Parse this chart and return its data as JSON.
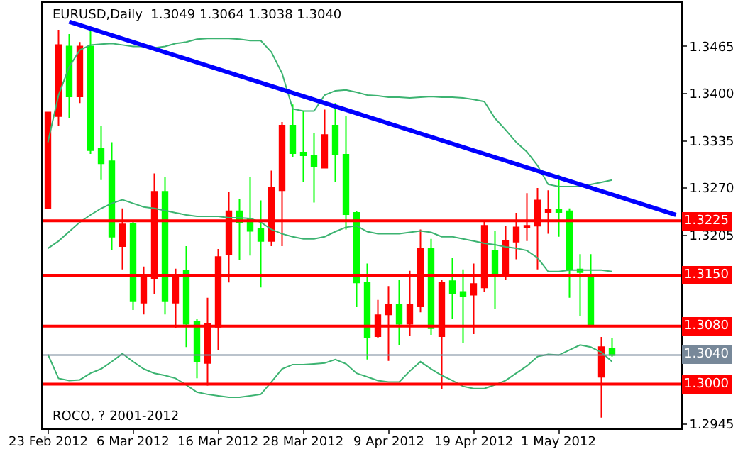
{
  "chart_data": {
    "type": "candlestick",
    "title": "EURUSD,Daily  1.3049 1.3064 1.3038 1.3040",
    "categories": [
      "23 Feb 2012",
      null,
      null,
      null,
      null,
      null,
      null,
      null,
      "6 Mar 2012",
      null,
      null,
      null,
      null,
      null,
      null,
      null,
      "16 Mar 2012",
      null,
      null,
      null,
      null,
      null,
      null,
      null,
      "28 Mar 2012",
      null,
      null,
      null,
      null,
      null,
      null,
      null,
      "9 Apr 2012",
      null,
      null,
      null,
      null,
      null,
      null,
      null,
      "19 Apr 2012",
      null,
      null,
      null,
      null,
      null,
      null,
      null,
      "1 May 2012",
      null,
      null,
      null,
      null,
      null,
      null,
      null,
      null,
      null,
      null,
      null
    ],
    "ohlc": [
      [
        1.3242,
        1.3374,
        1.3242,
        1.3374
      ],
      [
        1.3369,
        1.3488,
        1.3356,
        1.3467
      ],
      [
        1.3465,
        1.3482,
        1.3366,
        1.3396
      ],
      [
        1.3396,
        1.3471,
        1.3387,
        1.3465
      ],
      [
        1.3465,
        1.3486,
        1.3317,
        1.3322
      ],
      [
        1.3324,
        1.3356,
        1.3281,
        1.3304
      ],
      [
        1.3307,
        1.3333,
        1.3185,
        1.3203
      ],
      [
        1.319,
        1.3242,
        1.3158,
        1.322
      ],
      [
        1.3221,
        1.3224,
        1.3102,
        1.3114
      ],
      [
        1.3112,
        1.3162,
        1.3096,
        1.3148
      ],
      [
        1.3145,
        1.329,
        1.3124,
        1.3265
      ],
      [
        1.3265,
        1.3285,
        1.3096,
        1.3114
      ],
      [
        1.3112,
        1.3159,
        1.3077,
        1.3151
      ],
      [
        1.3156,
        1.319,
        1.3051,
        1.3083
      ],
      [
        1.3086,
        1.309,
        1.3008,
        1.3031
      ],
      [
        1.3029,
        1.3119,
        1.2998,
        1.3083
      ],
      [
        1.3079,
        1.3186,
        1.3047,
        1.3175
      ],
      [
        1.3179,
        1.3265,
        1.314,
        1.3238
      ],
      [
        1.3238,
        1.3255,
        1.3171,
        1.3223
      ],
      [
        1.3228,
        1.3285,
        1.3177,
        1.3211
      ],
      [
        1.3214,
        1.3253,
        1.3133,
        1.3197
      ],
      [
        1.3197,
        1.3294,
        1.319,
        1.327
      ],
      [
        1.3267,
        1.3361,
        1.319,
        1.3356
      ],
      [
        1.3356,
        1.3385,
        1.3312,
        1.3318
      ],
      [
        1.3319,
        1.3376,
        1.3278,
        1.3315
      ],
      [
        1.3315,
        1.3346,
        1.325,
        1.33
      ],
      [
        1.3298,
        1.3378,
        1.3298,
        1.3343
      ],
      [
        1.3356,
        1.3387,
        1.3278,
        1.3317
      ],
      [
        1.3316,
        1.3369,
        1.3213,
        1.3234
      ],
      [
        1.3236,
        1.3238,
        1.3106,
        1.314
      ],
      [
        1.314,
        1.3166,
        1.3034,
        1.3064
      ],
      [
        1.3066,
        1.3116,
        1.3064,
        1.3095
      ],
      [
        1.3096,
        1.3135,
        1.3032,
        1.3109
      ],
      [
        1.3109,
        1.3143,
        1.3054,
        1.3083
      ],
      [
        1.3083,
        1.3156,
        1.3066,
        1.3109
      ],
      [
        1.3107,
        1.3213,
        1.3099,
        1.3187
      ],
      [
        1.3187,
        1.32,
        1.3068,
        1.3077
      ],
      [
        1.3066,
        1.3143,
        1.2993,
        1.314
      ],
      [
        1.3142,
        1.3174,
        1.309,
        1.3125
      ],
      [
        1.3127,
        1.3158,
        1.3057,
        1.3121
      ],
      [
        1.3123,
        1.3166,
        1.3069,
        1.3138
      ],
      [
        1.3133,
        1.3226,
        1.3127,
        1.3218
      ],
      [
        1.3184,
        1.3211,
        1.3104,
        1.3153
      ],
      [
        1.3153,
        1.3218,
        1.3143,
        1.3197
      ],
      [
        1.3196,
        1.3236,
        1.3172,
        1.3216
      ],
      [
        1.3216,
        1.3263,
        1.3197,
        1.3218
      ],
      [
        1.3218,
        1.327,
        1.3158,
        1.3253
      ],
      [
        1.3237,
        1.3267,
        1.3207,
        1.324
      ],
      [
        1.324,
        1.3289,
        1.3203,
        1.3237
      ],
      [
        1.3238,
        1.3242,
        1.3119,
        1.3158
      ],
      [
        1.3158,
        1.3179,
        1.3094,
        1.3154
      ],
      [
        1.3151,
        1.3179,
        1.3079,
        1.308
      ],
      [
        1.301,
        1.3065,
        1.2954,
        1.3051
      ],
      [
        1.3049,
        1.3064,
        1.3038,
        1.304
      ],
      null,
      null,
      null,
      null,
      null,
      null
    ],
    "colors": [
      "#ff0000",
      "#ff0000",
      "#00ff00",
      "#ff0000",
      "#00ff00",
      "#00ff00",
      "#00ff00",
      "#ff0000",
      "#00ff00",
      "#ff0000",
      "#ff0000",
      "#00ff00",
      "#ff0000",
      "#00ff00",
      "#00ff00",
      "#ff0000",
      "#ff0000",
      "#ff0000",
      "#00ff00",
      "#00ff00",
      "#00ff00",
      "#ff0000",
      "#ff0000",
      "#00ff00",
      "#00ff00",
      "#00ff00",
      "#ff0000",
      "#00ff00",
      "#00ff00",
      "#00ff00",
      "#00ff00",
      "#ff0000",
      "#ff0000",
      "#00ff00",
      "#ff0000",
      "#ff0000",
      "#00ff00",
      "#ff0000",
      "#00ff00",
      "#00ff00",
      "#ff0000",
      "#ff0000",
      "#00ff00",
      "#ff0000",
      "#ff0000",
      "#ff0000",
      "#ff0000",
      "#ff0000",
      "#00ff00",
      "#00ff00",
      "#00ff00",
      "#00ff00",
      "#ff0000",
      "#00ff00",
      null,
      null,
      null,
      null,
      null,
      null
    ],
    "series": [
      {
        "type": "line",
        "color": "#3cb371",
        "values": [
          1.3333,
          1.3398,
          1.3437,
          1.346,
          1.3467,
          1.3468,
          1.3469,
          1.3467,
          1.3465,
          1.3465,
          1.3463,
          1.3465,
          1.3469,
          1.3471,
          1.3475,
          1.3476,
          1.3476,
          1.3476,
          1.3475,
          1.3473,
          1.3473,
          1.3457,
          1.3428,
          1.3379,
          1.3376,
          1.3376,
          1.3398,
          1.3404,
          1.3405,
          1.3402,
          1.3398,
          1.3397,
          1.3395,
          1.3395,
          1.3394,
          1.3395,
          1.3396,
          1.3395,
          1.3395,
          1.3394,
          1.3392,
          1.3389,
          1.3366,
          1.335,
          1.3333,
          1.332,
          1.3301,
          1.3275,
          1.3272,
          1.3272,
          1.3272,
          1.3275,
          1.3278,
          1.3281,
          null,
          null,
          null,
          null,
          null,
          null
        ]
      },
      {
        "type": "line",
        "color": "#3cb371",
        "values": [
          1.3187,
          1.3197,
          1.321,
          1.3223,
          1.3233,
          1.3242,
          1.3249,
          1.3254,
          1.3249,
          1.3244,
          1.3242,
          1.3239,
          1.3236,
          1.3233,
          1.3231,
          1.3231,
          1.3231,
          1.3229,
          1.3229,
          1.3228,
          1.3223,
          1.3213,
          1.3207,
          1.3203,
          1.32,
          1.32,
          1.3203,
          1.321,
          1.3216,
          1.3218,
          1.321,
          1.3207,
          1.3207,
          1.3207,
          1.3209,
          1.3211,
          1.3209,
          1.3203,
          1.3203,
          1.32,
          1.3197,
          1.3194,
          1.3192,
          1.3189,
          1.3187,
          1.3184,
          1.3174,
          1.3155,
          1.3155,
          1.3157,
          1.3157,
          1.3157,
          1.3157,
          1.3155,
          null,
          null,
          null,
          null,
          null,
          null
        ]
      },
      {
        "type": "line",
        "color": "#3cb371",
        "values": [
          1.3041,
          1.3008,
          1.3005,
          1.3006,
          1.3015,
          1.3021,
          1.3031,
          1.3042,
          1.3031,
          1.3021,
          1.3015,
          1.3012,
          1.3008,
          1.2999,
          1.2989,
          1.2986,
          1.2984,
          1.2982,
          1.2982,
          1.2984,
          1.2986,
          1.3003,
          1.3021,
          1.3027,
          1.3027,
          1.3028,
          1.3029,
          1.3034,
          1.3028,
          1.3015,
          1.301,
          1.3005,
          1.3003,
          1.3003,
          1.3018,
          1.3031,
          1.3021,
          1.3012,
          1.3005,
          1.2997,
          1.2994,
          1.2994,
          1.2999,
          1.3005,
          1.3015,
          1.3025,
          1.3038,
          1.3041,
          1.304,
          1.3047,
          1.3054,
          1.3051,
          1.3044,
          1.3031,
          null,
          null,
          null,
          null,
          null,
          null
        ]
      },
      {
        "type": "line",
        "color": "#0000ff",
        "values": [
          null,
          null,
          1.3499,
          null,
          null,
          null,
          null,
          null,
          null,
          null,
          null,
          null,
          null,
          null,
          null,
          null,
          null,
          null,
          null,
          null,
          null,
          null,
          null,
          null,
          null,
          null,
          null,
          null,
          null,
          null,
          null,
          null,
          null,
          null,
          null,
          null,
          null,
          null,
          null,
          null,
          null,
          null,
          null,
          null,
          null,
          null,
          null,
          null,
          null,
          null,
          null,
          null,
          null,
          null,
          null,
          null,
          null,
          null,
          null,
          1.3233
        ]
      }
    ],
    "ref_lines": [
      {
        "axis": "y",
        "value": 1.3225,
        "label": "1.3225",
        "color": "#ff0000"
      },
      {
        "axis": "y",
        "value": 1.315,
        "label": "1.3150",
        "color": "#ff0000"
      },
      {
        "axis": "y",
        "value": 1.308,
        "label": "1.3080",
        "color": "#ff0000"
      },
      {
        "axis": "y",
        "value": 1.3,
        "label": "1.3000",
        "color": "#ff0000"
      },
      {
        "axis": "y",
        "value": 1.304,
        "label": "1.3040",
        "color": "#778899"
      }
    ],
    "ylim": [
      1.2939,
      1.3525
    ],
    "yticks": [
      1.3465,
      {
        "value": 1.34,
        "label": "1.3400"
      },
      1.3335,
      {
        "value": 1.327,
        "label": "1.3270"
      },
      1.3205,
      1.2945
    ],
    "annotations": [
      "ROCO, ? 2001-2012"
    ]
  }
}
